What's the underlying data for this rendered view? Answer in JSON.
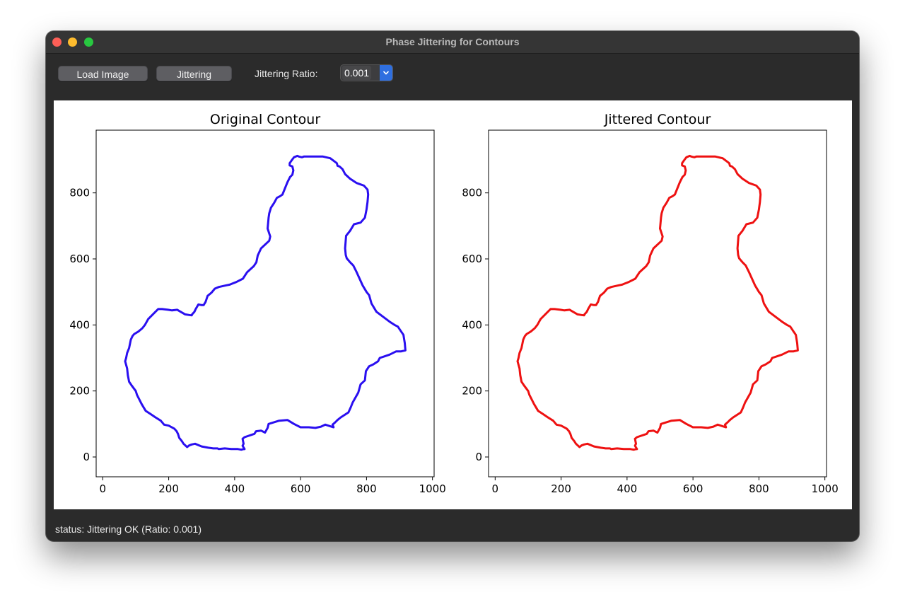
{
  "window": {
    "title": "Phase Jittering for Contours"
  },
  "toolbar": {
    "load_label": "Load Image",
    "jitter_label": "Jittering",
    "ratio_label": "Jittering Ratio:",
    "ratio_value": "0.001"
  },
  "status": {
    "text": "status: Jittering OK (Ratio: 0.001)"
  },
  "colors": {
    "original": "#2a0ff0",
    "jittered": "#ee1111",
    "accent": "#2f6fe0"
  },
  "icons": {
    "combo_arrow": "chevron-down-icon"
  },
  "chart_data": [
    {
      "type": "line",
      "title": "Original Contour",
      "xlabel": "",
      "ylabel": "",
      "xlim": [
        -20,
        1005
      ],
      "ylim": [
        -60,
        990
      ],
      "xticks": [
        0,
        200,
        400,
        600,
        800,
        1000
      ],
      "yticks": [
        0,
        200,
        400,
        600,
        800
      ],
      "grid": false,
      "series": [
        {
          "color": "#2a0ff0",
          "x": [
            430,
            424,
            427,
            424,
            430,
            460,
            465,
            480,
            492,
            500,
            503,
            535,
            560,
            580,
            590,
            600,
            625,
            645,
            662,
            675,
            690,
            700,
            697,
            705,
            712,
            722,
            745,
            752,
            758,
            775,
            782,
            795,
            798,
            808,
            820,
            835,
            840,
            855,
            870,
            890,
            905,
            918,
            916,
            912,
            905,
            895,
            885,
            870,
            850,
            830,
            815,
            808,
            800,
            788,
            770,
            760,
            750,
            740,
            737,
            735,
            738,
            750,
            762,
            782,
            795,
            800,
            803,
            805,
            803,
            792,
            770,
            750,
            735,
            727,
            718,
            712,
            710,
            690,
            668,
            650,
            625,
            610,
            604,
            595,
            590,
            580,
            574,
            567,
            567,
            575,
            578,
            575,
            568,
            560,
            545,
            538,
            528,
            520,
            510,
            505,
            503,
            500,
            508,
            505,
            480,
            470,
            466,
            458,
            438,
            425,
            405,
            395,
            385,
            375,
            352,
            340,
            330,
            318,
            312,
            306,
            300,
            290,
            282,
            278,
            271,
            270,
            262,
            250,
            236,
            226,
            210,
            198,
            180,
            168,
            160,
            150,
            138,
            128,
            120,
            108,
            95,
            90,
            85,
            80,
            74,
            71,
            68,
            74,
            76,
            80,
            88,
            100,
            104,
            118,
            130,
            145,
            160,
            176,
            186,
            200,
            217,
            224,
            228,
            232,
            240,
            245,
            256,
            262,
            270,
            280,
            300,
            320,
            335,
            348,
            352,
            370,
            390,
            410,
            420,
            428
          ],
          "y": [
            24,
            34,
            40,
            55,
            60,
            70,
            78,
            80,
            74,
            88,
            100,
            110,
            112,
            100,
            95,
            90,
            90,
            88,
            92,
            98,
            93,
            90,
            98,
            105,
            112,
            120,
            135,
            150,
            165,
            195,
            220,
            232,
            260,
            275,
            280,
            290,
            300,
            305,
            310,
            320,
            320,
            323,
            345,
            370,
            380,
            395,
            400,
            410,
            425,
            440,
            465,
            490,
            500,
            520,
            560,
            580,
            590,
            602,
            612,
            632,
            670,
            685,
            705,
            710,
            725,
            750,
            772,
            795,
            810,
            822,
            830,
            843,
            857,
            872,
            880,
            882,
            890,
            905,
            910,
            910,
            910,
            910,
            908,
            910,
            912,
            908,
            900,
            890,
            883,
            880,
            868,
            855,
            848,
            832,
            795,
            790,
            785,
            770,
            755,
            738,
            725,
            692,
            668,
            655,
            632,
            610,
            590,
            578,
            560,
            540,
            530,
            526,
            522,
            520,
            515,
            510,
            498,
            488,
            470,
            460,
            460,
            462,
            448,
            440,
            432,
            429,
            430,
            432,
            440,
            446,
            444,
            446,
            448,
            448,
            440,
            430,
            418,
            400,
            390,
            380,
            372,
            366,
            355,
            330,
            315,
            300,
            290,
            268,
            248,
            228,
            216,
            200,
            188,
            160,
            140,
            130,
            120,
            110,
            98,
            95,
            86,
            78,
            70,
            58,
            48,
            40,
            30,
            35,
            38,
            40,
            32,
            28,
            26,
            26,
            24,
            26,
            24,
            24,
            22,
            24
          ]
        }
      ]
    },
    {
      "type": "line",
      "title": "Jittered Contour",
      "xlabel": "",
      "ylabel": "",
      "xlim": [
        -20,
        1005
      ],
      "ylim": [
        -60,
        990
      ],
      "xticks": [
        0,
        200,
        400,
        600,
        800,
        1000
      ],
      "yticks": [
        0,
        200,
        400,
        600,
        800
      ],
      "grid": false,
      "series": [
        {
          "color": "#ee1111",
          "x": [
            430,
            424,
            427,
            424,
            430,
            460,
            465,
            480,
            492,
            500,
            503,
            535,
            560,
            580,
            590,
            600,
            625,
            645,
            662,
            675,
            690,
            700,
            697,
            705,
            712,
            722,
            745,
            752,
            758,
            775,
            782,
            795,
            798,
            808,
            820,
            835,
            840,
            855,
            870,
            890,
            905,
            918,
            916,
            912,
            905,
            895,
            885,
            870,
            850,
            830,
            815,
            808,
            800,
            788,
            770,
            760,
            750,
            740,
            737,
            735,
            738,
            750,
            762,
            782,
            795,
            800,
            803,
            805,
            803,
            792,
            770,
            750,
            735,
            727,
            718,
            712,
            710,
            690,
            668,
            650,
            625,
            610,
            604,
            595,
            590,
            580,
            574,
            567,
            567,
            575,
            578,
            575,
            568,
            560,
            545,
            538,
            528,
            520,
            510,
            505,
            503,
            500,
            508,
            505,
            480,
            470,
            466,
            458,
            438,
            425,
            405,
            395,
            385,
            375,
            352,
            340,
            330,
            318,
            312,
            306,
            300,
            290,
            282,
            278,
            271,
            270,
            262,
            250,
            236,
            226,
            210,
            198,
            180,
            168,
            160,
            150,
            138,
            128,
            120,
            108,
            95,
            90,
            85,
            80,
            74,
            71,
            68,
            74,
            76,
            80,
            88,
            100,
            104,
            118,
            130,
            145,
            160,
            176,
            186,
            200,
            217,
            224,
            228,
            232,
            240,
            245,
            256,
            262,
            270,
            280,
            300,
            320,
            335,
            348,
            352,
            370,
            390,
            410,
            420,
            428
          ],
          "y": [
            24,
            34,
            40,
            55,
            60,
            70,
            78,
            80,
            74,
            88,
            100,
            110,
            112,
            100,
            95,
            90,
            90,
            88,
            92,
            98,
            93,
            90,
            98,
            105,
            112,
            120,
            135,
            150,
            165,
            195,
            220,
            232,
            260,
            275,
            280,
            290,
            300,
            305,
            310,
            320,
            320,
            323,
            345,
            370,
            380,
            395,
            400,
            410,
            425,
            440,
            465,
            490,
            500,
            520,
            560,
            580,
            590,
            602,
            612,
            632,
            670,
            685,
            705,
            710,
            725,
            750,
            772,
            795,
            810,
            822,
            830,
            843,
            857,
            872,
            880,
            882,
            890,
            905,
            910,
            910,
            910,
            910,
            908,
            910,
            912,
            908,
            900,
            890,
            883,
            880,
            868,
            855,
            848,
            832,
            795,
            790,
            785,
            770,
            755,
            738,
            725,
            692,
            668,
            655,
            632,
            610,
            590,
            578,
            560,
            540,
            530,
            526,
            522,
            520,
            515,
            510,
            498,
            488,
            470,
            460,
            460,
            462,
            448,
            440,
            432,
            429,
            430,
            432,
            440,
            446,
            444,
            446,
            448,
            448,
            440,
            430,
            418,
            400,
            390,
            380,
            372,
            366,
            355,
            330,
            315,
            300,
            290,
            268,
            248,
            228,
            216,
            200,
            188,
            160,
            140,
            130,
            120,
            110,
            98,
            95,
            86,
            78,
            70,
            58,
            48,
            40,
            30,
            35,
            38,
            40,
            32,
            28,
            26,
            26,
            24,
            26,
            24,
            24,
            22,
            24
          ]
        }
      ]
    }
  ]
}
